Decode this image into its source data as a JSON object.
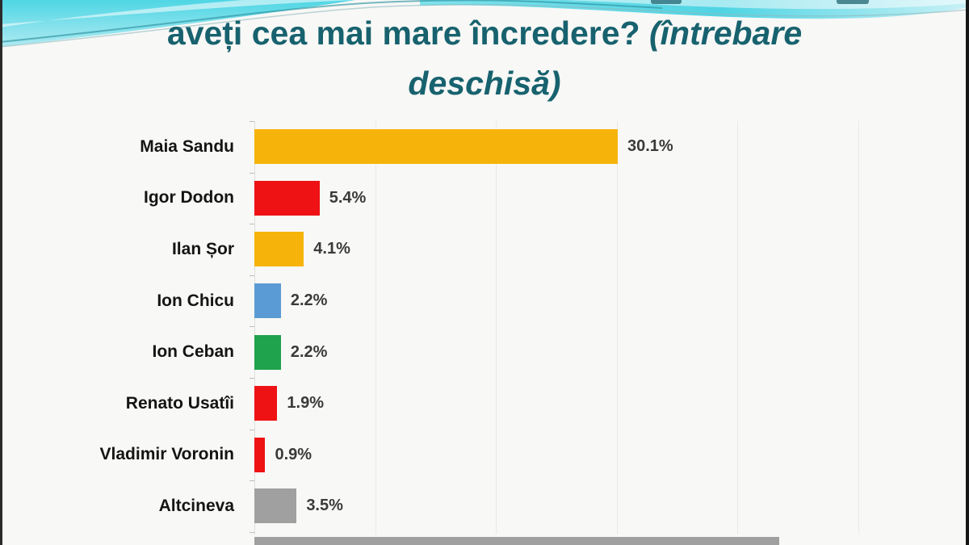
{
  "title": {
    "line1_bold": "aveți cea mai mare încredere?",
    "line1_italic": "(întrebare",
    "line2_italic": "deschisă)",
    "color": "#17626e"
  },
  "chart_data": {
    "type": "bar",
    "orientation": "horizontal",
    "unit": "%",
    "categories": [
      "Maia Sandu",
      "Igor Dodon",
      "Ilan Șor",
      "Ion Chicu",
      "Ion Ceban",
      "Renato Usatîi",
      "Vladimir Voronin",
      "Altcineva"
    ],
    "values": [
      30.1,
      5.4,
      4.1,
      2.2,
      2.2,
      1.9,
      0.9,
      3.5
    ],
    "value_labels": [
      "30.1%",
      "5.4%",
      "4.1%",
      "2.2%",
      "2.2%",
      "1.9%",
      "0.9%",
      "3.5%"
    ],
    "bar_colors": [
      "gold",
      "red",
      "gold",
      "blue",
      "green",
      "red",
      "red",
      "gray"
    ],
    "palette": {
      "gold": "#f6b40b",
      "red": "#ee1214",
      "blue": "#5b9bd5",
      "green": "#1fa34d",
      "gray": "#a0a0a0"
    },
    "axis": {
      "xlim": [
        0,
        55
      ],
      "gridline_interval_pct": 10,
      "gridline_color": "#e9e9e7",
      "tick_color": "#bdbdbb",
      "grid": true,
      "value_labels_shown": true,
      "legend": "none"
    },
    "clipped_row": {
      "note": "ninth bar cut off by bottom edge of frame, label and value not visible",
      "color": "gray",
      "approx_value_pct": 43.5,
      "label_visible": false
    }
  },
  "decor": {
    "banner_cyan": "#55d8e6",
    "banner_cyan_light": "#b3ecf3",
    "arc_line_color": "#2e93a0",
    "frame_border_color": "#1d1d1d",
    "background": "#f8f8f6"
  }
}
